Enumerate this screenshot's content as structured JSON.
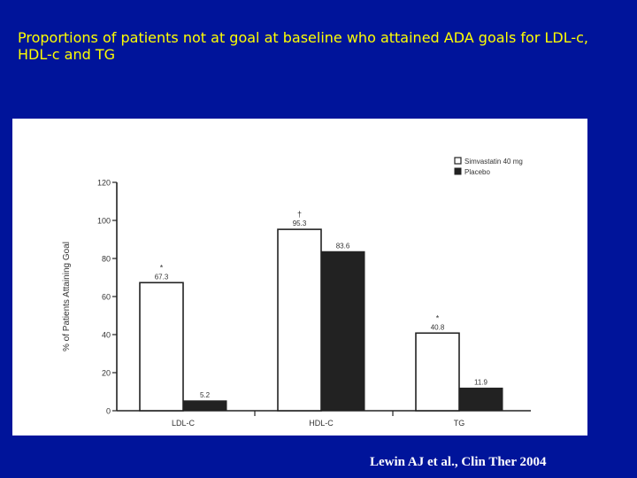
{
  "slide": {
    "title": "Proportions of patients not at goal at baseline who attained ADA goals for LDL-c, HDL-c and TG",
    "citation": "Lewin AJ et al., Clin Ther 2004"
  },
  "colors": {
    "background": "#00149a",
    "title": "#ffff00",
    "citation": "#ffffff",
    "simvastatin": "#ffffff",
    "placebo": "#222222"
  },
  "chart_data": {
    "type": "bar",
    "categories": [
      "LDL-C",
      "HDL-C",
      "TG"
    ],
    "series": [
      {
        "name": "Simvastatin 40 mg",
        "values": [
          67.3,
          95.3,
          40.8
        ],
        "labels": [
          "67.3",
          "95.3",
          "40.8"
        ],
        "markers": [
          "*",
          "†",
          "*"
        ]
      },
      {
        "name": "Placebo",
        "values": [
          5.2,
          83.6,
          11.9
        ],
        "labels": [
          "5.2",
          "83.6",
          "11.9"
        ]
      }
    ],
    "ylabel": "% of Patients Attaining Goal",
    "xlabel": "",
    "ylim": [
      0,
      120
    ],
    "yticks": [
      "0",
      "20",
      "40",
      "60",
      "80",
      "100",
      "120"
    ],
    "grid": false,
    "legend_position": "top-right"
  }
}
